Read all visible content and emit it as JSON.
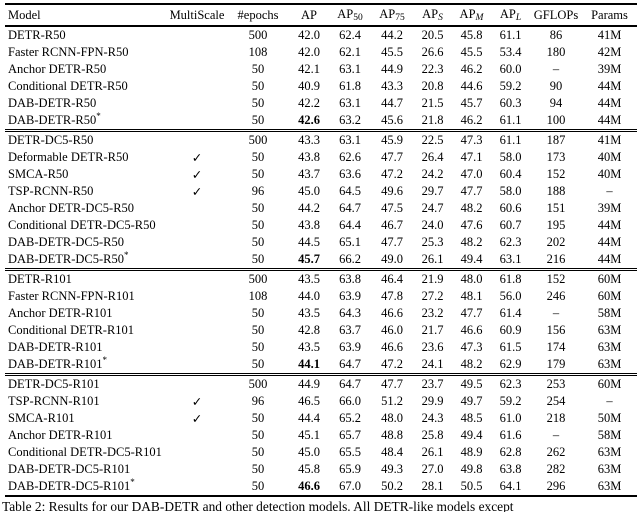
{
  "page": {
    "background": "#ffffff",
    "text_color": "#000000"
  },
  "table": {
    "star_glyph": "*",
    "checkmark_glyph": "✓",
    "dash_glyph": "–",
    "header": {
      "model": "Model",
      "multiscale": "MultiScale",
      "epochs": "#epochs",
      "metrics": [
        {
          "base": "AP",
          "sub": "",
          "italic": false
        },
        {
          "base": "AP",
          "sub": "50",
          "italic": false
        },
        {
          "base": "AP",
          "sub": "75",
          "italic": false
        },
        {
          "base": "AP",
          "sub": "S",
          "italic": true
        },
        {
          "base": "AP",
          "sub": "M",
          "italic": true
        },
        {
          "base": "AP",
          "sub": "L",
          "italic": true
        }
      ],
      "gflops": "GFLOPs",
      "params": "Params"
    },
    "sections": [
      {
        "rows": [
          {
            "model": "DETR-R50",
            "star": false,
            "multiscale": false,
            "epochs": "500",
            "ap": "42.0",
            "ap_bold": false,
            "ap50": "62.4",
            "ap75": "44.2",
            "aps": "20.5",
            "apm": "45.8",
            "apl": "61.1",
            "gflops": "86",
            "params": "41M"
          },
          {
            "model": "Faster RCNN-FPN-R50",
            "star": false,
            "multiscale": false,
            "epochs": "108",
            "ap": "42.0",
            "ap_bold": false,
            "ap50": "62.1",
            "ap75": "45.5",
            "aps": "26.6",
            "apm": "45.5",
            "apl": "53.4",
            "gflops": "180",
            "params": "42M"
          },
          {
            "model": "Anchor DETR-R50",
            "star": false,
            "multiscale": false,
            "epochs": "50",
            "ap": "42.1",
            "ap_bold": false,
            "ap50": "63.1",
            "ap75": "44.9",
            "aps": "22.3",
            "apm": "46.2",
            "apl": "60.0",
            "gflops": "–",
            "params": "39M"
          },
          {
            "model": "Conditional DETR-R50",
            "star": false,
            "multiscale": false,
            "epochs": "50",
            "ap": "40.9",
            "ap_bold": false,
            "ap50": "61.8",
            "ap75": "43.3",
            "aps": "20.8",
            "apm": "44.6",
            "apl": "59.2",
            "gflops": "90",
            "params": "44M"
          },
          {
            "model": "DAB-DETR-R50",
            "star": false,
            "multiscale": false,
            "epochs": "50",
            "ap": "42.2",
            "ap_bold": false,
            "ap50": "63.1",
            "ap75": "44.7",
            "aps": "21.5",
            "apm": "45.7",
            "apl": "60.3",
            "gflops": "94",
            "params": "44M"
          },
          {
            "model": "DAB-DETR-R50",
            "star": true,
            "multiscale": false,
            "epochs": "50",
            "ap": "42.6",
            "ap_bold": true,
            "ap50": "63.2",
            "ap75": "45.6",
            "aps": "21.8",
            "apm": "46.2",
            "apl": "61.1",
            "gflops": "100",
            "params": "44M"
          }
        ]
      },
      {
        "rows": [
          {
            "model": "DETR-DC5-R50",
            "star": false,
            "multiscale": false,
            "epochs": "500",
            "ap": "43.3",
            "ap_bold": false,
            "ap50": "63.1",
            "ap75": "45.9",
            "aps": "22.5",
            "apm": "47.3",
            "apl": "61.1",
            "gflops": "187",
            "params": "41M"
          },
          {
            "model": "Deformable DETR-R50",
            "star": false,
            "multiscale": true,
            "epochs": "50",
            "ap": "43.8",
            "ap_bold": false,
            "ap50": "62.6",
            "ap75": "47.7",
            "aps": "26.4",
            "apm": "47.1",
            "apl": "58.0",
            "gflops": "173",
            "params": "40M"
          },
          {
            "model": "SMCA-R50",
            "star": false,
            "multiscale": true,
            "epochs": "50",
            "ap": "43.7",
            "ap_bold": false,
            "ap50": "63.6",
            "ap75": "47.2",
            "aps": "24.2",
            "apm": "47.0",
            "apl": "60.4",
            "gflops": "152",
            "params": "40M"
          },
          {
            "model": "TSP-RCNN-R50",
            "star": false,
            "multiscale": true,
            "epochs": "96",
            "ap": "45.0",
            "ap_bold": false,
            "ap50": "64.5",
            "ap75": "49.6",
            "aps": "29.7",
            "apm": "47.7",
            "apl": "58.0",
            "gflops": "188",
            "params": "–"
          },
          {
            "model": "Anchor DETR-DC5-R50",
            "star": false,
            "multiscale": false,
            "epochs": "50",
            "ap": "44.2",
            "ap_bold": false,
            "ap50": "64.7",
            "ap75": "47.5",
            "aps": "24.7",
            "apm": "48.2",
            "apl": "60.6",
            "gflops": "151",
            "params": "39M"
          },
          {
            "model": "Conditional DETR-DC5-R50",
            "star": false,
            "multiscale": false,
            "epochs": "50",
            "ap": "43.8",
            "ap_bold": false,
            "ap50": "64.4",
            "ap75": "46.7",
            "aps": "24.0",
            "apm": "47.6",
            "apl": "60.7",
            "gflops": "195",
            "params": "44M"
          },
          {
            "model": "DAB-DETR-DC5-R50",
            "star": false,
            "multiscale": false,
            "epochs": "50",
            "ap": "44.5",
            "ap_bold": false,
            "ap50": "65.1",
            "ap75": "47.7",
            "aps": "25.3",
            "apm": "48.2",
            "apl": "62.3",
            "gflops": "202",
            "params": "44M"
          },
          {
            "model": "DAB-DETR-DC5-R50",
            "star": true,
            "multiscale": false,
            "epochs": "50",
            "ap": "45.7",
            "ap_bold": true,
            "ap50": "66.2",
            "ap75": "49.0",
            "aps": "26.1",
            "apm": "49.4",
            "apl": "63.1",
            "gflops": "216",
            "params": "44M"
          }
        ]
      },
      {
        "rows": [
          {
            "model": "DETR-R101",
            "star": false,
            "multiscale": false,
            "epochs": "500",
            "ap": "43.5",
            "ap_bold": false,
            "ap50": "63.8",
            "ap75": "46.4",
            "aps": "21.9",
            "apm": "48.0",
            "apl": "61.8",
            "gflops": "152",
            "params": "60M"
          },
          {
            "model": "Faster RCNN-FPN-R101",
            "star": false,
            "multiscale": false,
            "epochs": "108",
            "ap": "44.0",
            "ap_bold": false,
            "ap50": "63.9",
            "ap75": "47.8",
            "aps": "27.2",
            "apm": "48.1",
            "apl": "56.0",
            "gflops": "246",
            "params": "60M"
          },
          {
            "model": "Anchor DETR-R101",
            "star": false,
            "multiscale": false,
            "epochs": "50",
            "ap": "43.5",
            "ap_bold": false,
            "ap50": "64.3",
            "ap75": "46.6",
            "aps": "23.2",
            "apm": "47.7",
            "apl": "61.4",
            "gflops": "–",
            "params": "58M"
          },
          {
            "model": "Conditional DETR-R101",
            "star": false,
            "multiscale": false,
            "epochs": "50",
            "ap": "42.8",
            "ap_bold": false,
            "ap50": "63.7",
            "ap75": "46.0",
            "aps": "21.7",
            "apm": "46.6",
            "apl": "60.9",
            "gflops": "156",
            "params": "63M"
          },
          {
            "model": "DAB-DETR-R101",
            "star": false,
            "multiscale": false,
            "epochs": "50",
            "ap": "43.5",
            "ap_bold": false,
            "ap50": "63.9",
            "ap75": "46.6",
            "aps": "23.6",
            "apm": "47.3",
            "apl": "61.5",
            "gflops": "174",
            "params": "63M"
          },
          {
            "model": "DAB-DETR-R101",
            "star": true,
            "multiscale": false,
            "epochs": "50",
            "ap": "44.1",
            "ap_bold": true,
            "ap50": "64.7",
            "ap75": "47.2",
            "aps": "24.1",
            "apm": "48.2",
            "apl": "62.9",
            "gflops": "179",
            "params": "63M"
          }
        ]
      },
      {
        "rows": [
          {
            "model": "DETR-DC5-R101",
            "star": false,
            "multiscale": false,
            "epochs": "500",
            "ap": "44.9",
            "ap_bold": false,
            "ap50": "64.7",
            "ap75": "47.7",
            "aps": "23.7",
            "apm": "49.5",
            "apl": "62.3",
            "gflops": "253",
            "params": "60M"
          },
          {
            "model": "TSP-RCNN-R101",
            "star": false,
            "multiscale": true,
            "epochs": "96",
            "ap": "46.5",
            "ap_bold": false,
            "ap50": "66.0",
            "ap75": "51.2",
            "aps": "29.9",
            "apm": "49.7",
            "apl": "59.2",
            "gflops": "254",
            "params": "–"
          },
          {
            "model": "SMCA-R101",
            "star": false,
            "multiscale": true,
            "epochs": "50",
            "ap": "44.4",
            "ap_bold": false,
            "ap50": "65.2",
            "ap75": "48.0",
            "aps": "24.3",
            "apm": "48.5",
            "apl": "61.0",
            "gflops": "218",
            "params": "50M"
          },
          {
            "model": "Anchor DETR-R101",
            "star": false,
            "multiscale": false,
            "epochs": "50",
            "ap": "45.1",
            "ap_bold": false,
            "ap50": "65.7",
            "ap75": "48.8",
            "aps": "25.8",
            "apm": "49.4",
            "apl": "61.6",
            "gflops": "–",
            "params": "58M"
          },
          {
            "model": "Conditional DETR-DC5-R101",
            "star": false,
            "multiscale": false,
            "epochs": "50",
            "ap": "45.0",
            "ap_bold": false,
            "ap50": "65.5",
            "ap75": "48.4",
            "aps": "26.1",
            "apm": "48.9",
            "apl": "62.8",
            "gflops": "262",
            "params": "63M"
          },
          {
            "model": "DAB-DETR-DC5-R101",
            "star": false,
            "multiscale": false,
            "epochs": "50",
            "ap": "45.8",
            "ap_bold": false,
            "ap50": "65.9",
            "ap75": "49.3",
            "aps": "27.0",
            "apm": "49.8",
            "apl": "63.8",
            "gflops": "282",
            "params": "63M"
          },
          {
            "model": "DAB-DETR-DC5-R101",
            "star": true,
            "multiscale": false,
            "epochs": "50",
            "ap": "46.6",
            "ap_bold": true,
            "ap50": "67.0",
            "ap75": "50.2",
            "aps": "28.1",
            "apm": "50.5",
            "apl": "64.1",
            "gflops": "296",
            "params": "63M"
          }
        ]
      }
    ]
  },
  "caption": {
    "text": "Table 2: Results for our DAB-DETR and other detection models. All DETR-like models except"
  }
}
